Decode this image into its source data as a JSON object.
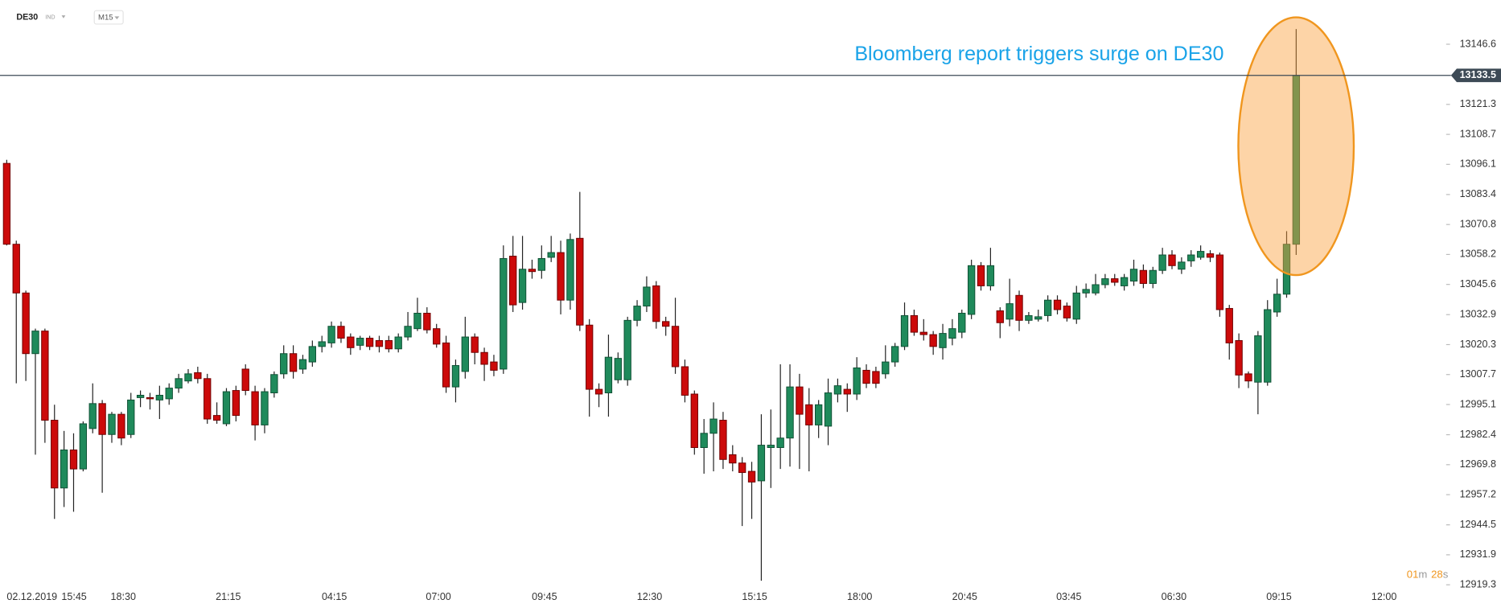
{
  "header": {
    "symbol": "DE30",
    "market": "IND",
    "interval": "M15"
  },
  "timer": {
    "minutes": "01",
    "minutes_unit": "m",
    "seconds": "28",
    "seconds_unit": "s"
  },
  "chart_data": {
    "type": "candlestick",
    "annotation": "Bloomberg report triggers surge on DE30",
    "date_label": "02.12.2019",
    "up_color": "#1f8a5b",
    "down_color": "#cc0a0a",
    "current_price": 13133.5,
    "ylim": [
      12914.4,
      13165.2
    ],
    "yticks": [
      13146.6,
      13121.3,
      13108.7,
      13096.1,
      13083.4,
      13070.8,
      13058.2,
      13045.6,
      13032.9,
      13020.3,
      13007.7,
      12995.1,
      12982.4,
      12969.8,
      12957.2,
      12944.5,
      12931.9,
      12919.3
    ],
    "xlim": [
      -0.705,
      150.4
    ],
    "xticks": [
      {
        "value": 7.05,
        "label": "15:45"
      },
      {
        "value": 12.2,
        "label": "18:30"
      },
      {
        "value": 23.2,
        "label": "21:15"
      },
      {
        "value": 34.3,
        "label": "04:15"
      },
      {
        "value": 45.2,
        "label": "07:00"
      },
      {
        "value": 56.3,
        "label": "09:45"
      },
      {
        "value": 67.3,
        "label": "12:30"
      },
      {
        "value": 78.3,
        "label": "15:15"
      },
      {
        "value": 89.3,
        "label": "18:00"
      },
      {
        "value": 100.3,
        "label": "20:45"
      },
      {
        "value": 111.2,
        "label": "03:45"
      },
      {
        "value": 122.2,
        "label": "06:30"
      },
      {
        "value": 133.2,
        "label": "09:15"
      },
      {
        "value": 144.2,
        "label": "12:00"
      }
    ],
    "ohlc": [
      [
        13096.5,
        13098,
        13062,
        13062.5
      ],
      [
        13062.5,
        13064,
        13004,
        13042
      ],
      [
        13042,
        13043,
        13005,
        13016.5
      ],
      [
        13016.5,
        13027,
        12974,
        13026
      ],
      [
        13026,
        13027,
        12979,
        12988.5
      ],
      [
        12988.5,
        12995,
        12947,
        12960
      ],
      [
        12960,
        12984,
        12952,
        12976
      ],
      [
        12976,
        12983,
        12950,
        12968
      ],
      [
        12968,
        12988,
        12967,
        12987
      ],
      [
        12985,
        13004,
        12983,
        12995.5
      ],
      [
        12995.5,
        12997,
        12958,
        12982.5
      ],
      [
        12982.5,
        12992,
        12979,
        12991
      ],
      [
        12991,
        12992,
        12978,
        12981
      ],
      [
        12982.5,
        13000,
        12981,
        12997
      ],
      [
        12998,
        13001,
        12994,
        12999
      ],
      [
        12998,
        13000,
        12993,
        12997.5
      ],
      [
        12997,
        13003,
        12989,
        12999
      ],
      [
        12997.5,
        13004,
        12995,
        13002
      ],
      [
        13002,
        13008,
        13000,
        13006
      ],
      [
        13005,
        13010,
        13004,
        13008
      ],
      [
        13008.5,
        13011,
        13004,
        13006
      ],
      [
        13006,
        13008,
        12987,
        12989
      ],
      [
        12990.5,
        12996,
        12987,
        12988.5
      ],
      [
        12987,
        13002,
        12986,
        13000.5
      ],
      [
        13001,
        13003,
        12988,
        12990.5
      ],
      [
        13010,
        13012,
        12999,
        13001
      ],
      [
        13000.5,
        13003,
        12980,
        12986.5
      ],
      [
        12986.5,
        13002,
        12983,
        13000.5
      ],
      [
        13000,
        13009,
        12998,
        13007.7
      ],
      [
        13008,
        13020,
        13006,
        13016.5
      ],
      [
        13016.5,
        13020,
        13006,
        13009
      ],
      [
        13010,
        13016,
        13008,
        13014
      ],
      [
        13013,
        13022,
        13011,
        13019.5
      ],
      [
        13019.5,
        13024,
        13017,
        13021.5
      ],
      [
        13021,
        13030,
        13019,
        13028
      ],
      [
        13028,
        13030,
        13021,
        13023
      ],
      [
        13023.5,
        13025,
        13016,
        13019
      ],
      [
        13020,
        13024,
        13018,
        13023
      ],
      [
        13023,
        13024,
        13018,
        13019.5
      ],
      [
        13022,
        13024,
        13017,
        13019.5
      ],
      [
        13022,
        13024,
        13017,
        13018.5
      ],
      [
        13018.5,
        13025,
        13017,
        13023.5
      ],
      [
        13023.5,
        13034,
        13022,
        13028
      ],
      [
        13027,
        13040,
        13026,
        13033.5
      ],
      [
        13033.5,
        13036,
        13025,
        13026.5
      ],
      [
        13027,
        13029,
        13019,
        13020.5
      ],
      [
        13021,
        13024,
        13000,
        13002.5
      ],
      [
        13002.5,
        13014,
        12996,
        13011.5
      ],
      [
        13009,
        13032,
        13006,
        13023.5
      ],
      [
        13023.5,
        13025,
        13012,
        13017
      ],
      [
        13017,
        13019,
        13005,
        13012
      ],
      [
        13013,
        13016,
        13007,
        13009.5
      ],
      [
        13010,
        13062,
        13008,
        13056.5
      ],
      [
        13057.5,
        13066,
        13034,
        13037
      ],
      [
        13038,
        13066,
        13035,
        13052
      ],
      [
        13052,
        13056,
        13048,
        13051
      ],
      [
        13051.5,
        13062,
        13048,
        13056.5
      ],
      [
        13057,
        13066,
        13055,
        13059
      ],
      [
        13059,
        13064,
        13033,
        13039
      ],
      [
        13039,
        13067,
        13035,
        13064.5
      ],
      [
        13065,
        13084.5,
        13026,
        13028.5
      ],
      [
        13028.5,
        13031,
        12990,
        13001.5
      ],
      [
        13001.5,
        13004,
        12994,
        12999.5
      ],
      [
        13000,
        13024.5,
        12990,
        13015
      ],
      [
        13005.5,
        13017,
        13004,
        13014.5
      ],
      [
        13005.5,
        13032,
        13003,
        13030.5
      ],
      [
        13030.5,
        13039,
        13028,
        13036.5
      ],
      [
        13036.5,
        13049,
        13034,
        13044.5
      ],
      [
        13045,
        13047,
        13027,
        13030
      ],
      [
        13030,
        13032,
        13024,
        13028
      ],
      [
        13028,
        13040,
        13008,
        13011
      ],
      [
        13011,
        13014,
        12996,
        12999
      ],
      [
        12999.5,
        13001,
        12974,
        12977
      ],
      [
        12977,
        12989,
        12966,
        12983
      ],
      [
        12983,
        12996,
        12967,
        12989
      ],
      [
        12988.5,
        12992,
        12968,
        12972
      ],
      [
        12974,
        12978,
        12967,
        12970.5
      ],
      [
        12970.5,
        12973,
        12944,
        12966.5
      ],
      [
        12967,
        12971,
        12947,
        12962.5
      ],
      [
        12963,
        12991,
        12921,
        12978
      ],
      [
        12977,
        12993,
        12960,
        12978
      ],
      [
        12977,
        13012,
        12968,
        12981
      ],
      [
        12981,
        13012,
        12969,
        13002.5
      ],
      [
        13002.5,
        13008,
        12968,
        12991
      ],
      [
        12995,
        13002,
        12967,
        12986.5
      ],
      [
        12986.5,
        12997,
        12981,
        12995
      ],
      [
        12986,
        13006,
        12978,
        13000
      ],
      [
        12999.5,
        13006,
        12996,
        13003
      ],
      [
        13001.5,
        13004,
        12992,
        12999.5
      ],
      [
        12999.5,
        13015,
        12997,
        13010.5
      ],
      [
        13009.5,
        13012,
        13002,
        13004
      ],
      [
        13009,
        13011,
        13002,
        13004
      ],
      [
        13008,
        13020,
        13006,
        13013
      ],
      [
        13013,
        13021,
        13011,
        13019.5
      ],
      [
        13019.5,
        13038,
        13018,
        13032.5
      ],
      [
        13032.5,
        13035,
        13024,
        13025.5
      ],
      [
        13025.5,
        13031,
        13022,
        13024.5
      ],
      [
        13024.5,
        13026,
        13016,
        13019.5
      ],
      [
        13019,
        13029,
        13014,
        13025
      ],
      [
        13023,
        13031,
        13020,
        13027
      ],
      [
        13025.5,
        13035,
        13023,
        13033.5
      ],
      [
        13033,
        13056,
        13031,
        13053.5
      ],
      [
        13053.5,
        13055,
        13043,
        13045
      ],
      [
        13045,
        13061,
        13043,
        13053.5
      ],
      [
        13034.5,
        13036,
        13023,
        13029.5
      ],
      [
        13031,
        13048,
        13028,
        13037.5
      ],
      [
        13041,
        13043,
        13026,
        13030.5
      ],
      [
        13030.5,
        13034,
        13029,
        13032.5
      ],
      [
        13031,
        13035,
        13030,
        13032
      ],
      [
        13032.5,
        13041,
        13030,
        13039
      ],
      [
        13039,
        13041,
        13033,
        13035
      ],
      [
        13036.5,
        13038,
        13030,
        13031.5
      ],
      [
        13031,
        13045,
        13029,
        13042
      ],
      [
        13042,
        13046,
        13040,
        13043.5
      ],
      [
        13042,
        13050,
        13041,
        13045.5
      ],
      [
        13045.5,
        13050,
        13044,
        13048
      ],
      [
        13048,
        13050,
        13045,
        13046.5
      ],
      [
        13045,
        13050,
        13043,
        13048.5
      ],
      [
        13047,
        13056,
        13045,
        13052
      ],
      [
        13051.5,
        13054,
        13044,
        13046
      ],
      [
        13046,
        13053,
        13044,
        13051.5
      ],
      [
        13051.5,
        13061,
        13050,
        13058
      ],
      [
        13058,
        13060,
        13052,
        13053.5
      ],
      [
        13052,
        13057,
        13050,
        13055
      ],
      [
        13055.5,
        13060,
        13053,
        13058
      ],
      [
        13057,
        13062,
        13056,
        13059.5
      ],
      [
        13058.5,
        13060,
        13055,
        13057
      ],
      [
        13058,
        13059,
        13032,
        13035
      ],
      [
        13035.5,
        13037,
        13014,
        13021
      ],
      [
        13022,
        13025,
        13002,
        13007.5
      ],
      [
        13008,
        13009,
        13002,
        13005
      ],
      [
        13004.5,
        13026,
        12991,
        13024
      ],
      [
        13004.5,
        13039,
        13003,
        13035
      ],
      [
        13034,
        13048,
        13032,
        13041.5
      ],
      [
        13041.5,
        13068,
        13040,
        13062.5
      ],
      [
        13062.5,
        13153,
        13058,
        13133.5
      ]
    ]
  }
}
